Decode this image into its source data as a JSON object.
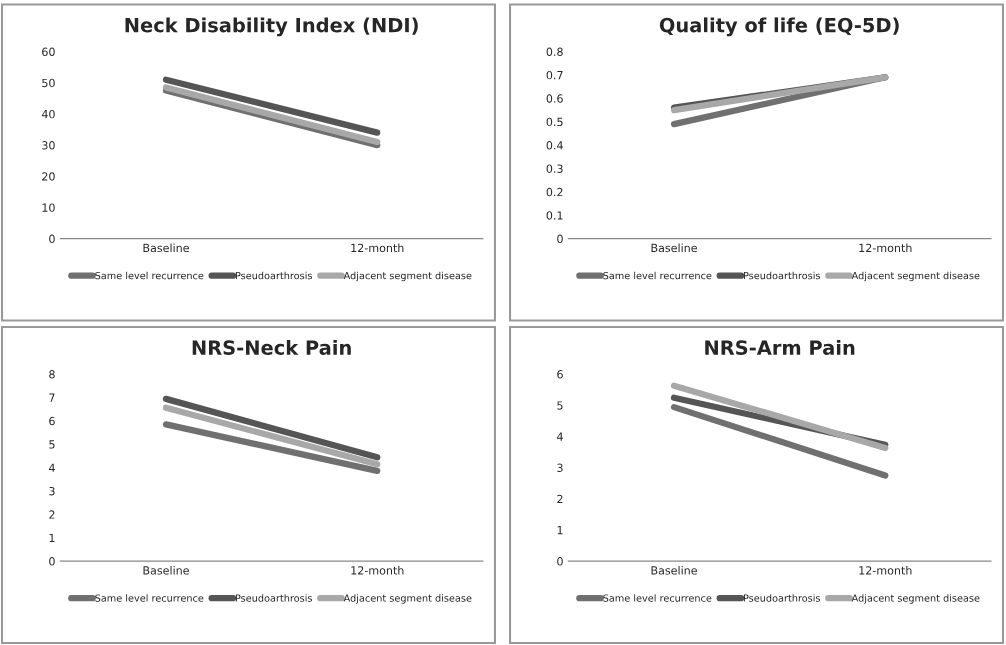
{
  "chart_data": [
    {
      "type": "line",
      "title": "Neck Disability Index (NDI)",
      "categories": [
        "Baseline",
        "12-month"
      ],
      "ylim": [
        0,
        60
      ],
      "yticks": [
        0,
        10,
        20,
        30,
        40,
        50,
        60
      ],
      "legend": "bottom",
      "grid": false,
      "series": [
        {
          "name": "Same level recurrence",
          "color": "#707070",
          "values": [
            47.5,
            30
          ]
        },
        {
          "name": "Pseudoarthrosis",
          "color": "#555555",
          "values": [
            51,
            34
          ]
        },
        {
          "name": "Adjacent segment disease",
          "color": "#a8a8a8",
          "values": [
            48.5,
            31
          ]
        }
      ]
    },
    {
      "type": "line",
      "title": "Quality of life (EQ-5D)",
      "categories": [
        "Baseline",
        "12-month"
      ],
      "ylim": [
        0,
        0.8
      ],
      "yticks": [
        0,
        0.1,
        0.2,
        0.3,
        0.4,
        0.5,
        0.6,
        0.7,
        0.8
      ],
      "legend": "bottom",
      "grid": false,
      "series": [
        {
          "name": "Same level recurrence",
          "color": "#707070",
          "values": [
            0.49,
            0.69
          ]
        },
        {
          "name": "Pseudoarthrosis",
          "color": "#555555",
          "values": [
            0.56,
            0.69
          ]
        },
        {
          "name": "Adjacent segment disease",
          "color": "#a8a8a8",
          "values": [
            0.55,
            0.69
          ]
        }
      ]
    },
    {
      "type": "line",
      "title": "NRS-Neck Pain",
      "categories": [
        "Baseline",
        "12-month"
      ],
      "ylim": [
        0,
        8
      ],
      "yticks": [
        0,
        1,
        2,
        3,
        4,
        5,
        6,
        7,
        8
      ],
      "legend": "bottom",
      "grid": false,
      "series": [
        {
          "name": "Same level recurrence",
          "color": "#707070",
          "values": [
            5.85,
            3.86
          ]
        },
        {
          "name": "Pseudoarthrosis",
          "color": "#555555",
          "values": [
            6.94,
            4.44
          ]
        },
        {
          "name": "Adjacent segment disease",
          "color": "#a8a8a8",
          "values": [
            6.56,
            4.14
          ]
        }
      ]
    },
    {
      "type": "line",
      "title": "NRS-Arm Pain",
      "categories": [
        "Baseline",
        "12-month"
      ],
      "ylim": [
        0,
        6
      ],
      "yticks": [
        0,
        1,
        2,
        3,
        4,
        5,
        6
      ],
      "legend": "bottom",
      "grid": false,
      "series": [
        {
          "name": "Same level recurrence",
          "color": "#707070",
          "values": [
            4.94,
            2.75
          ]
        },
        {
          "name": "Pseudoarthrosis",
          "color": "#555555",
          "values": [
            5.24,
            3.73
          ]
        },
        {
          "name": "Adjacent segment disease",
          "color": "#a8a8a8",
          "values": [
            5.63,
            3.63
          ]
        }
      ]
    }
  ]
}
